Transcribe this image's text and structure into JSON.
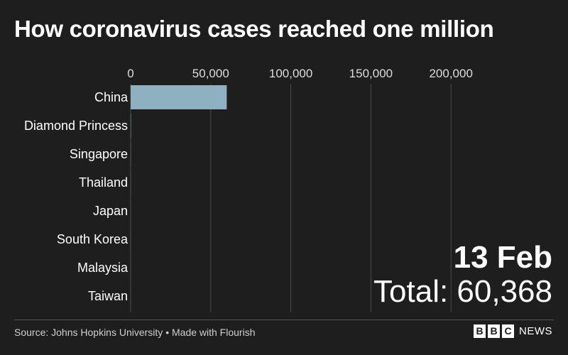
{
  "chart_data": {
    "type": "bar",
    "orientation": "horizontal",
    "title": "How coronavirus cases reached one million",
    "categories": [
      "China",
      "Diamond Princess",
      "Singapore",
      "Thailand",
      "Japan",
      "South Korea",
      "Malaysia",
      "Taiwan"
    ],
    "values": [
      60000,
      175,
      58,
      33,
      29,
      28,
      18,
      18
    ],
    "xlim": [
      0,
      250000
    ],
    "xticks": [
      0,
      50000,
      100000,
      150000,
      200000
    ],
    "xtick_labels": [
      "0",
      "50,000",
      "100,000",
      "150,000",
      "200,000"
    ],
    "axis_position": "top",
    "grid": true,
    "bar_color": "#8fb0c0",
    "annotations": {
      "date": "13 Feb",
      "total": "Total: 60,368"
    }
  },
  "footer": {
    "source": "Source: Johns Hopkins University • Made with Flourish",
    "logo_letters": [
      "B",
      "B",
      "C"
    ],
    "logo_text": "NEWS"
  }
}
